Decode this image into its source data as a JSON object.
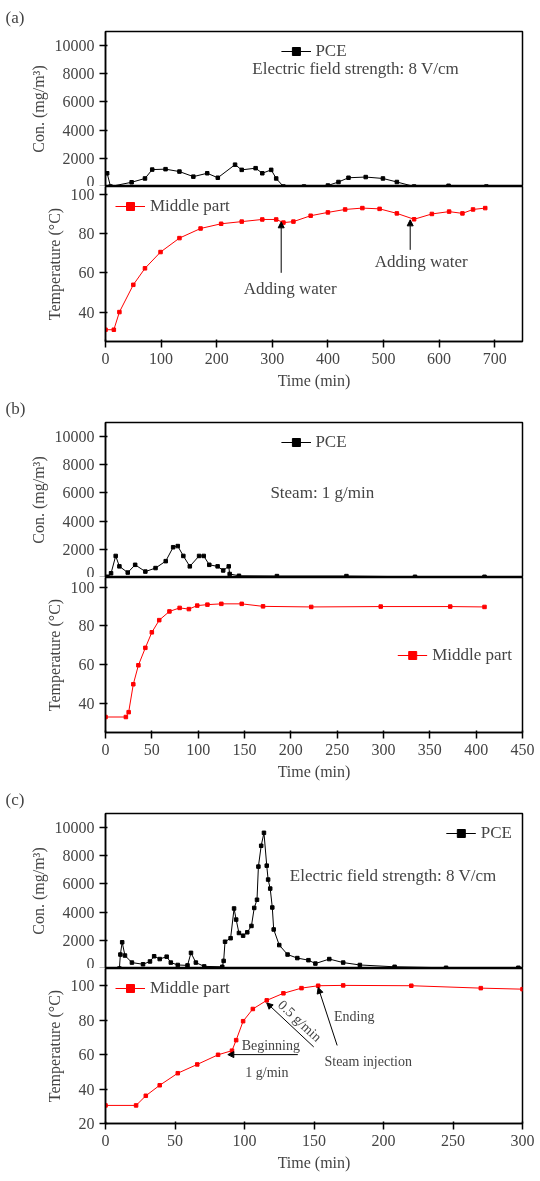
{
  "chart_data": [
    {
      "type": "line",
      "title": "(a)",
      "ylabel": "Con. (mg/m³)",
      "x": [
        3,
        9,
        47,
        71,
        84,
        108,
        133,
        158,
        183,
        202,
        233,
        245,
        270,
        282,
        298,
        307,
        320,
        357,
        400,
        419,
        437,
        468,
        499,
        524,
        555,
        617,
        685
      ],
      "series": [
        {
          "name": "PCE",
          "color": "#000000",
          "values": [
            940,
            0,
            300,
            570,
            1200,
            1230,
            1060,
            700,
            940,
            620,
            1550,
            1180,
            1300,
            940,
            1180,
            570,
            0,
            0,
            70,
            320,
            620,
            670,
            570,
            320,
            0,
            50,
            0
          ]
        }
      ],
      "xlim": [
        0,
        750
      ],
      "ylim": [
        0,
        11000
      ],
      "yticks": [
        0,
        2000,
        4000,
        6000,
        8000,
        10000
      ],
      "tick_labels": "y",
      "legend": "top",
      "marker": "square",
      "line_style": "solid",
      "annotations": [
        "Electric field strength: 8 V/cm"
      ]
    },
    {
      "type": "line",
      "xlabel": "Time (min)",
      "ylabel": "Temperature (°C)",
      "x": [
        0,
        15,
        25,
        50,
        71,
        99,
        133,
        171,
        208,
        245,
        282,
        307,
        320,
        338,
        369,
        400,
        431,
        462,
        493,
        524,
        555,
        587,
        618,
        642,
        661,
        683
      ],
      "series": [
        {
          "name": "Middle part",
          "color": "#ff0000",
          "values": [
            31,
            31,
            40,
            53.9,
            62.3,
            70.6,
            77.7,
            82.6,
            85,
            86.1,
            87.2,
            87.2,
            85.6,
            86.1,
            89.1,
            90.8,
            92.3,
            93,
            92.6,
            90.3,
            87.3,
            90,
            91.2,
            90.3,
            92.3,
            93
          ]
        }
      ],
      "xlim": [
        0,
        750
      ],
      "xticks": [
        0,
        100,
        200,
        300,
        400,
        500,
        600,
        700
      ],
      "ylim": [
        25,
        104
      ],
      "yticks": [
        40,
        60,
        80,
        100
      ],
      "legend": "top left",
      "marker": "square",
      "line_style": "solid",
      "annotations": [
        {
          "text": "Adding water",
          "x": 316,
          "y": 86
        },
        {
          "text": "Adding water",
          "x": 548,
          "y": 87
        }
      ]
    },
    {
      "type": "line",
      "title": "(b)",
      "ylabel": "Con. (mg/m³)",
      "x": [
        2,
        6,
        11,
        15,
        24,
        32,
        43,
        54,
        65,
        73,
        78,
        84,
        91,
        101,
        106,
        112,
        121,
        127,
        133,
        134,
        144,
        185,
        260,
        334,
        409
      ],
      "series": [
        {
          "name": "PCE",
          "color": "#000000",
          "values": [
            50,
            300,
            1530,
            790,
            350,
            900,
            420,
            670,
            1160,
            2150,
            2230,
            1530,
            790,
            1530,
            1530,
            900,
            790,
            500,
            790,
            250,
            120,
            100,
            100,
            50,
            50
          ]
        }
      ],
      "xlim": [
        0,
        450
      ],
      "ylim": [
        0,
        11000
      ],
      "yticks": [
        0,
        2000,
        4000,
        6000,
        8000,
        10000
      ],
      "tick_labels": "y",
      "legend": "top",
      "marker": "square",
      "line_style": "solid",
      "annotations": [
        "Steam: 1 g/min"
      ]
    },
    {
      "type": "line",
      "xlabel": "Time (min)",
      "ylabel": "Temperature (°C)",
      "x": [
        0,
        22,
        25,
        30,
        35.5,
        43,
        50,
        58,
        69,
        80,
        90,
        99,
        110,
        125,
        147,
        170,
        222,
        297,
        372,
        409
      ],
      "series": [
        {
          "name": "Middle part",
          "color": "#ff0000",
          "values": [
            33,
            33,
            35.5,
            49.9,
            59.7,
            68.7,
            76.7,
            83,
            87.5,
            89.3,
            88.7,
            90.5,
            91,
            91.4,
            91.4,
            90.1,
            89.8,
            90,
            90,
            89.8
          ]
        }
      ],
      "xlim": [
        0,
        450
      ],
      "xticks": [
        0,
        50,
        100,
        150,
        200,
        250,
        300,
        350,
        400,
        450
      ],
      "ylim": [
        25,
        105
      ],
      "yticks": [
        40,
        60,
        80,
        100
      ],
      "legend": "right",
      "marker": "square",
      "line_style": "solid"
    },
    {
      "type": "line",
      "title": "(c)",
      "ylabel": "Con. (mg/m³)",
      "x": [
        10,
        10.7,
        12,
        14,
        19,
        27,
        32,
        35,
        39,
        44,
        47,
        52,
        59,
        61.5,
        65,
        71,
        84,
        85,
        86,
        90,
        92.5,
        94,
        96,
        99,
        102,
        105,
        107,
        109,
        110,
        112,
        114,
        116,
        117,
        118.5,
        120,
        121,
        125,
        131,
        138,
        146,
        151,
        161,
        171,
        183,
        208,
        245,
        297
      ],
      "series": [
        {
          "name": "PCE",
          "color": "#000000",
          "values": [
            0,
            990,
            1860,
            920,
            420,
            300,
            500,
            870,
            670,
            840,
            420,
            250,
            220,
            1110,
            420,
            150,
            120,
            540,
            1900,
            2150,
            4260,
            3470,
            2520,
            2330,
            2570,
            3020,
            4300,
            4880,
            7230,
            8710,
            9630,
            7300,
            6310,
            5670,
            4330,
            2770,
            1660,
            990,
            740,
            590,
            350,
            670,
            420,
            250,
            120,
            50,
            50
          ]
        }
      ],
      "xlim": [
        0,
        300
      ],
      "ylim": [
        0,
        11000
      ],
      "yticks": [
        0,
        2000,
        4000,
        6000,
        8000,
        10000
      ],
      "tick_labels": "y",
      "legend": "top right",
      "marker": "square",
      "line_style": "solid",
      "annotations": [
        "Electric field strength: 8 V/cm"
      ]
    },
    {
      "type": "line",
      "xlabel": "Time (min)",
      "ylabel": "Temperature (°C)",
      "x": [
        0,
        22,
        29,
        39,
        52,
        66,
        81,
        91,
        94,
        99,
        106,
        116,
        128,
        141,
        153,
        171,
        220,
        270,
        300
      ],
      "series": [
        {
          "name": "Middle part",
          "color": "#ff0000",
          "values": [
            30.5,
            30.5,
            36.1,
            42.2,
            49.2,
            54.3,
            59.9,
            62.3,
            68.4,
            79.4,
            86.5,
            91.5,
            95.6,
            98.6,
            100,
            100.2,
            100,
            98.6,
            98
          ]
        }
      ],
      "xlim": [
        0,
        300
      ],
      "xticks": [
        0,
        50,
        100,
        150,
        200,
        250,
        300
      ],
      "ylim": [
        20,
        110
      ],
      "yticks": [
        20,
        40,
        60,
        80,
        100
      ],
      "legend": "top left",
      "marker": "square",
      "line_style": "solid",
      "annotations": [
        {
          "text": "Beginning",
          "x": 88,
          "y": 60
        },
        "1 g/min",
        {
          "text": "0.5 g/min",
          "x": 116,
          "y": 90
        },
        {
          "text": "Ending",
          "x": 153,
          "y": 99
        },
        "Steam injection"
      ]
    }
  ]
}
